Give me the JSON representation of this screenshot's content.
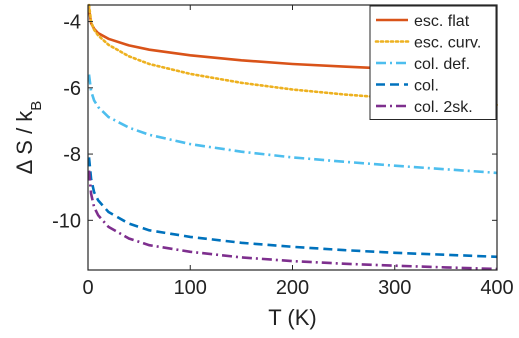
{
  "chart_data": {
    "type": "line",
    "xlabel": "T (K)",
    "ylabel": "Δ S / k_B",
    "xlim": [
      0,
      400
    ],
    "ylim": [
      -11.5,
      -3.5
    ],
    "xticks": [
      0,
      100,
      200,
      300,
      400
    ],
    "yticks": [
      -10,
      -8,
      -6,
      -4
    ],
    "grid": false,
    "legend_position": "top-right",
    "series": [
      {
        "name": "esc. flat",
        "color": "#D95319",
        "dash": "solid",
        "points": [
          [
            1,
            -3.6
          ],
          [
            3,
            -4.05
          ],
          [
            6,
            -4.22
          ],
          [
            10,
            -4.35
          ],
          [
            20,
            -4.52
          ],
          [
            40,
            -4.72
          ],
          [
            60,
            -4.85
          ],
          [
            100,
            -5.02
          ],
          [
            150,
            -5.17
          ],
          [
            200,
            -5.28
          ],
          [
            250,
            -5.36
          ],
          [
            300,
            -5.43
          ],
          [
            350,
            -5.49
          ],
          [
            400,
            -5.53
          ]
        ]
      },
      {
        "name": "esc. curv.",
        "color": "#EDB120",
        "dash": "dotted",
        "points": [
          [
            1,
            -3.5
          ],
          [
            3,
            -4.0
          ],
          [
            6,
            -4.25
          ],
          [
            10,
            -4.42
          ],
          [
            20,
            -4.7
          ],
          [
            40,
            -5.05
          ],
          [
            60,
            -5.28
          ],
          [
            100,
            -5.58
          ],
          [
            150,
            -5.85
          ],
          [
            200,
            -6.05
          ],
          [
            250,
            -6.2
          ],
          [
            300,
            -6.32
          ],
          [
            350,
            -6.43
          ],
          [
            400,
            -6.52
          ]
        ]
      },
      {
        "name": "col. def.",
        "color": "#4DBEEE",
        "dash": "dashdot",
        "points": [
          [
            1,
            -5.6
          ],
          [
            3,
            -6.1
          ],
          [
            6,
            -6.38
          ],
          [
            10,
            -6.58
          ],
          [
            20,
            -6.88
          ],
          [
            40,
            -7.2
          ],
          [
            60,
            -7.42
          ],
          [
            100,
            -7.7
          ],
          [
            150,
            -7.93
          ],
          [
            200,
            -8.1
          ],
          [
            250,
            -8.23
          ],
          [
            300,
            -8.35
          ],
          [
            350,
            -8.46
          ],
          [
            400,
            -8.57
          ]
        ]
      },
      {
        "name": "col.",
        "color": "#0072BD",
        "dash": "dashed",
        "points": [
          [
            1,
            -8.1
          ],
          [
            3,
            -8.75
          ],
          [
            6,
            -9.15
          ],
          [
            10,
            -9.4
          ],
          [
            20,
            -9.75
          ],
          [
            40,
            -10.1
          ],
          [
            60,
            -10.3
          ],
          [
            100,
            -10.5
          ],
          [
            150,
            -10.68
          ],
          [
            200,
            -10.8
          ],
          [
            250,
            -10.9
          ],
          [
            300,
            -10.98
          ],
          [
            350,
            -11.04
          ],
          [
            400,
            -11.1
          ]
        ]
      },
      {
        "name": "col. 2sk.",
        "color": "#7E2F8E",
        "dash": "dashdot",
        "points": [
          [
            1,
            -8.5
          ],
          [
            3,
            -9.2
          ],
          [
            6,
            -9.6
          ],
          [
            10,
            -9.85
          ],
          [
            20,
            -10.2
          ],
          [
            40,
            -10.55
          ],
          [
            60,
            -10.75
          ],
          [
            100,
            -10.95
          ],
          [
            150,
            -11.12
          ],
          [
            200,
            -11.23
          ],
          [
            250,
            -11.31
          ],
          [
            300,
            -11.37
          ],
          [
            350,
            -11.42
          ],
          [
            400,
            -11.47
          ]
        ]
      }
    ]
  }
}
